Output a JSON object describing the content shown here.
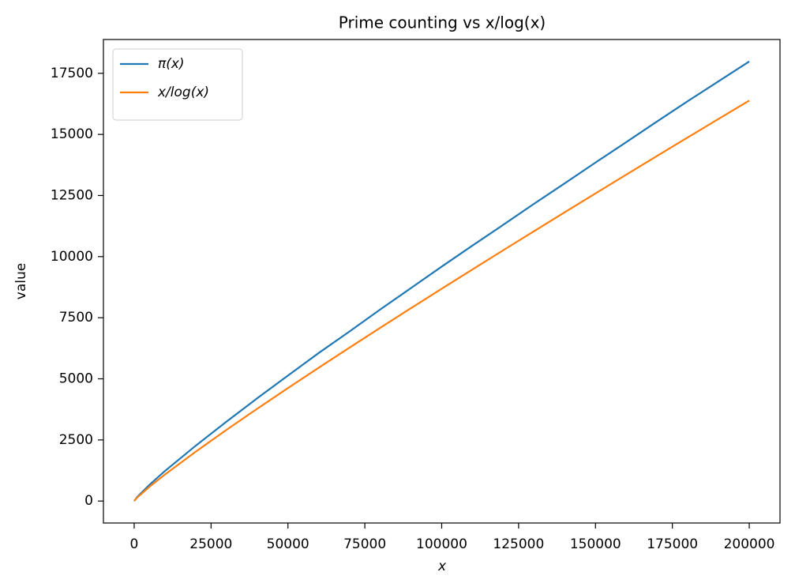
{
  "chart_data": {
    "type": "line",
    "title": "Prime counting vs x/log(x)",
    "x_label": "x",
    "y_label": "value",
    "x": [
      2,
      1000,
      5000,
      10000,
      20000,
      30000,
      40000,
      50000,
      60000,
      70000,
      80000,
      90000,
      100000,
      110000,
      120000,
      130000,
      140000,
      150000,
      160000,
      170000,
      180000,
      190000,
      200000
    ],
    "series": [
      {
        "name": "π(x)",
        "color": "#1f77b4",
        "values": [
          1,
          168,
          669,
          1229,
          2262,
          3245,
          4203,
          5133,
          6057,
          6935,
          7837,
          8713,
          9592,
          10453,
          11301,
          12159,
          12997,
          13848,
          14683,
          15527,
          16361,
          17171,
          17984
        ]
      },
      {
        "name": "x/log(x)",
        "color": "#ff7f0e",
        "values": [
          2.885,
          144.8,
          587.1,
          1085.7,
          2019.5,
          2910.1,
          3774.8,
          4621.2,
          5453.5,
          6274.5,
          7086.0,
          7889.5,
          8685.9,
          9475.9,
          10260.6,
          11040.1,
          11814.9,
          12585.6,
          13352.5,
          14115.4,
          14875.2,
          15631.7,
          16385.3
        ]
      }
    ],
    "xlim": [
      -10000,
      210000
    ],
    "ylim": [
      -899,
      18883
    ],
    "xticks": [
      0,
      25000,
      50000,
      75000,
      100000,
      125000,
      150000,
      175000,
      200000
    ],
    "yticks": [
      0,
      2500,
      5000,
      7500,
      10000,
      12500,
      15000,
      17500
    ],
    "grid": false,
    "legend": "upper-left"
  }
}
